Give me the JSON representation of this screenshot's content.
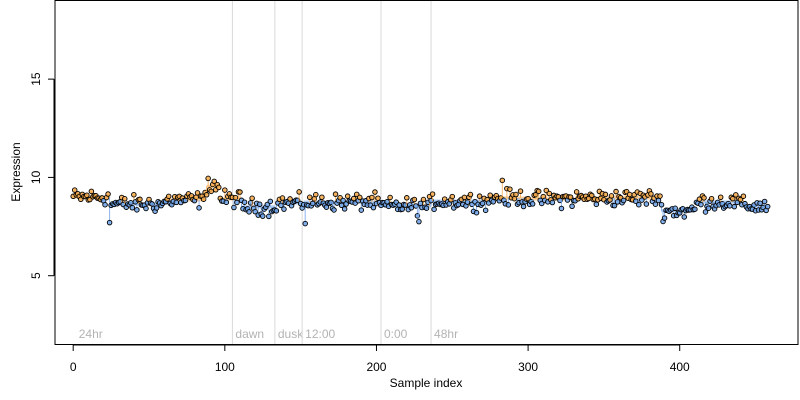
{
  "chart_data": {
    "type": "scatter",
    "title": "",
    "xlabel": "Sample index",
    "ylabel": "Expression",
    "xlim": [
      -12,
      478
    ],
    "ylim": [
      1.5,
      19
    ],
    "xticks": [
      0,
      100,
      200,
      300,
      400
    ],
    "yticks": [
      5,
      10,
      15
    ],
    "xtick_labels": [
      "0",
      "100",
      "200",
      "300",
      "400"
    ],
    "ytick_labels": [
      "5",
      "10",
      "15"
    ],
    "grid": false,
    "baseline": 8.85,
    "colors": {
      "above": "#f5a94b",
      "below": "#6fa3e8",
      "vline": "#d9d9d9",
      "vline_label": "#b3b3b3",
      "point_stroke": "#000000",
      "baseline_line": "#b8b8b8"
    },
    "vlines": [
      {
        "x": 105,
        "label": "dawn"
      },
      {
        "x": 133,
        "label": "dusk"
      },
      {
        "x": 151,
        "label": "12:00"
      },
      {
        "x": 203,
        "label": "0:00"
      },
      {
        "x": 236,
        "label": "48hr"
      }
    ],
    "corner_label": {
      "x": 3,
      "label": "24hr"
    },
    "segments": [
      {
        "x": [
          0,
          24
        ],
        "mean": 9.0
      },
      {
        "x": [
          25,
          60
        ],
        "mean": 8.65
      },
      {
        "x": [
          61,
          87
        ],
        "mean": 8.85
      },
      {
        "x": [
          88,
          96
        ],
        "mean": 9.55
      },
      {
        "x": [
          97,
          110
        ],
        "mean": 8.9
      },
      {
        "x": [
          111,
          133
        ],
        "mean": 8.5
      },
      {
        "x": [
          134,
          151
        ],
        "mean": 8.7
      },
      {
        "x": [
          152,
          200
        ],
        "mean": 8.75
      },
      {
        "x": [
          201,
          236
        ],
        "mean": 8.55
      },
      {
        "x": [
          237,
          275
        ],
        "mean": 8.8
      },
      {
        "x": [
          276,
          300
        ],
        "mean": 8.95
      },
      {
        "x": [
          301,
          330
        ],
        "mean": 8.9
      },
      {
        "x": [
          331,
          387
        ],
        "mean": 8.95
      },
      {
        "x": [
          388,
          410
        ],
        "mean": 8.3
      },
      {
        "x": [
          411,
          440
        ],
        "mean": 8.75
      },
      {
        "x": [
          441,
          458
        ],
        "mean": 8.55
      }
    ],
    "n_points": 459,
    "outliers": [
      {
        "x": 24,
        "y": 7.7
      },
      {
        "x": 89,
        "y": 9.95
      },
      {
        "x": 93,
        "y": 9.8
      },
      {
        "x": 153,
        "y": 7.65
      },
      {
        "x": 228,
        "y": 7.75
      },
      {
        "x": 283,
        "y": 9.85
      }
    ]
  }
}
